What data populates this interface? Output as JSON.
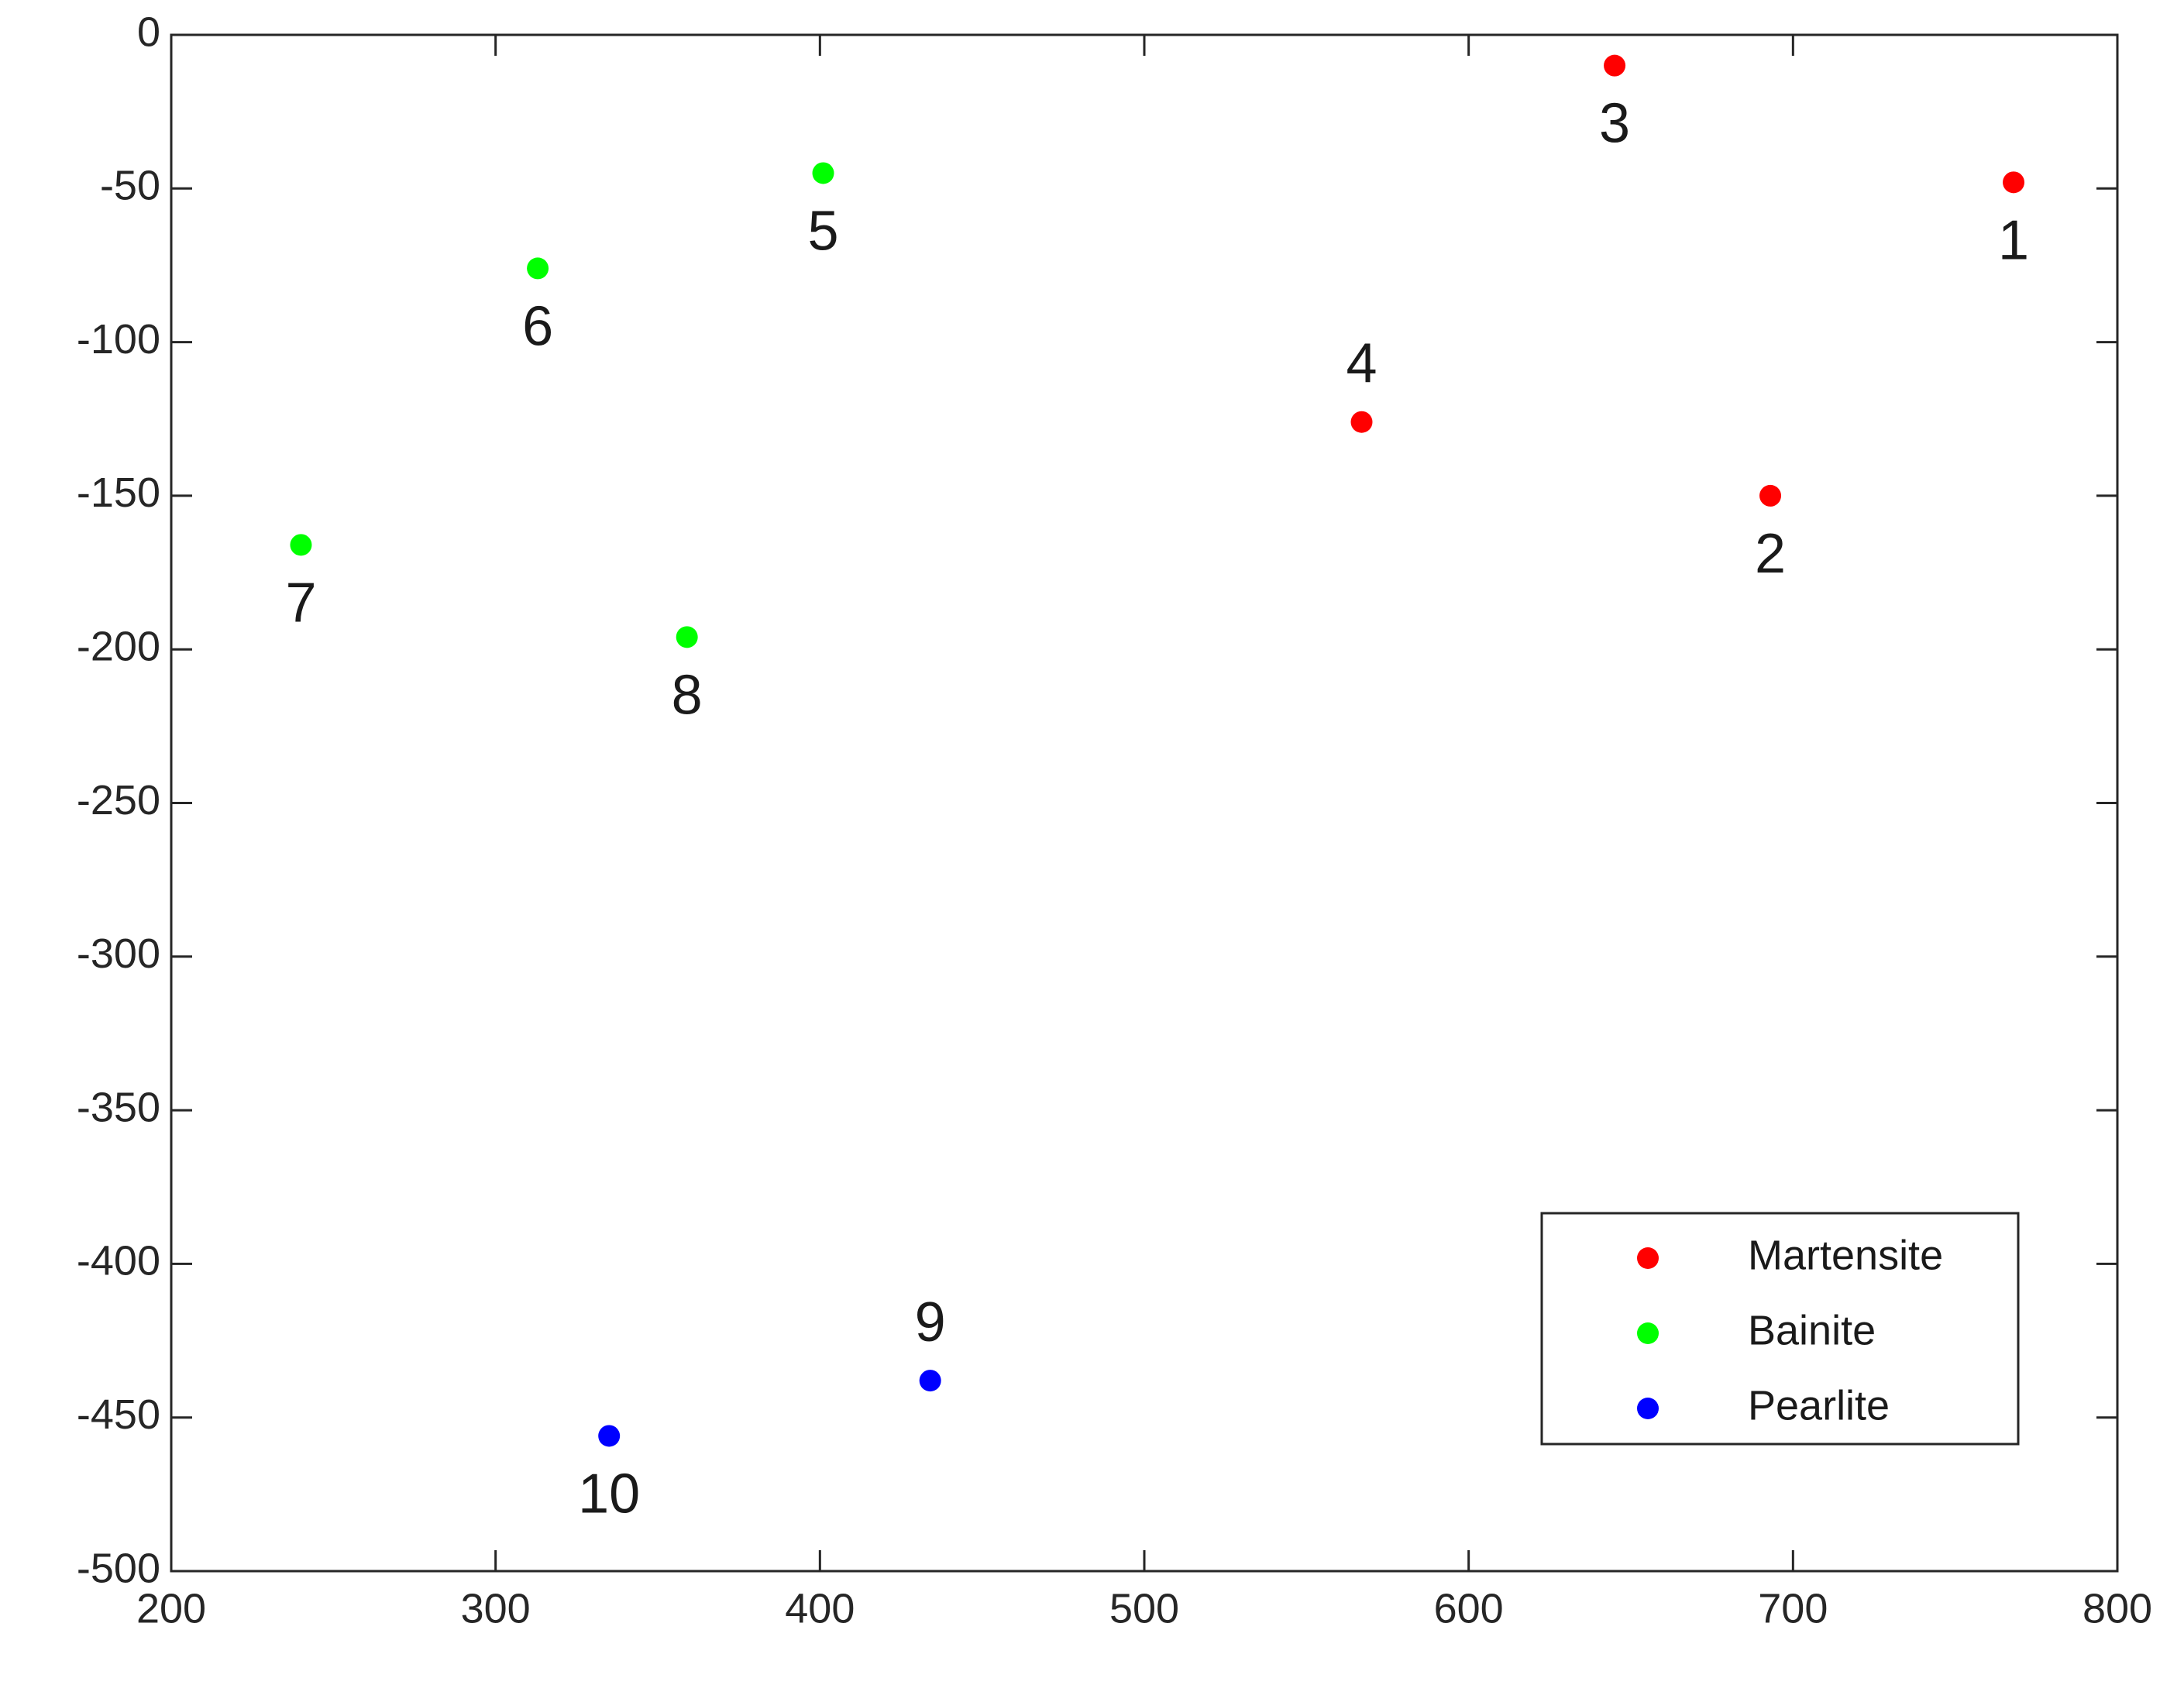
{
  "chart_data": {
    "type": "scatter",
    "xlim": [
      200,
      800
    ],
    "xticks": [
      200,
      300,
      400,
      500,
      600,
      700,
      800
    ],
    "ylim": [
      -500,
      0
    ],
    "yticks": [
      -500,
      -450,
      -400,
      -350,
      -300,
      -250,
      -200,
      -150,
      -100,
      -50,
      0
    ],
    "legend": "lower right",
    "series": [
      {
        "name": "Martensite",
        "color": "#ff0000",
        "x": [
          768,
          693,
          645,
          567
        ],
        "values": [
          -48,
          -150,
          -10,
          -126
        ],
        "labels": [
          "1",
          "2",
          "3",
          "4"
        ]
      },
      {
        "name": "Bainite",
        "color": "#00ff00",
        "x": [
          401,
          313,
          240,
          359
        ],
        "values": [
          -45,
          -76,
          -166,
          -196
        ],
        "labels": [
          "5",
          "6",
          "7",
          "8"
        ]
      },
      {
        "name": "Pearlite",
        "color": "#0000ff",
        "x": [
          434,
          335
        ],
        "values": [
          -438,
          -456
        ],
        "labels": [
          "9",
          "10"
        ]
      }
    ]
  }
}
